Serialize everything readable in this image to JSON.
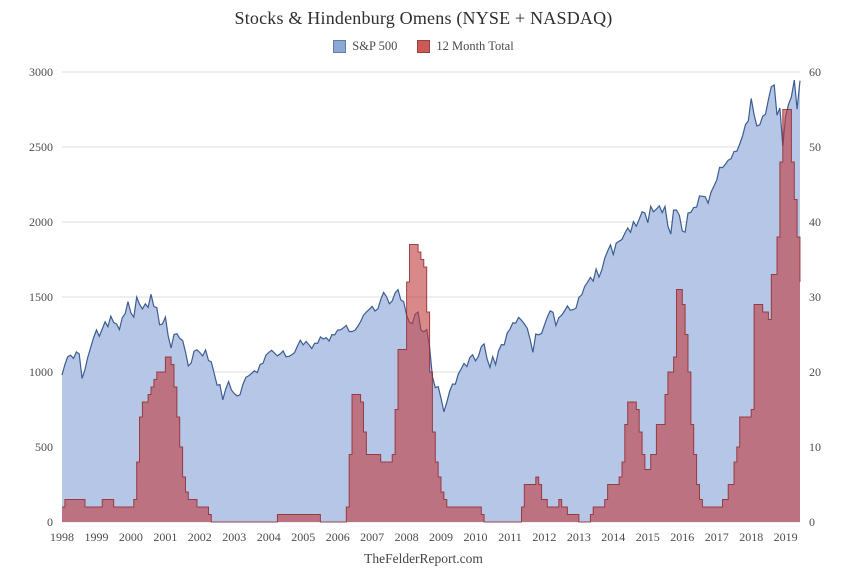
{
  "chart_data": {
    "type": "area",
    "title": "Stocks & Hindenburg Omens (NYSE + NASDAQ)",
    "source": "TheFelderReport.com",
    "legend_position": "top-center",
    "grid": true,
    "grid_color": "#dcdcdc",
    "x_range": [
      1998,
      2019.4167
    ],
    "points_per_year": 12,
    "x_start": 1998,
    "xticks": [
      1998,
      1999,
      2000,
      2001,
      2002,
      2003,
      2004,
      2005,
      2006,
      2007,
      2008,
      2009,
      2010,
      2011,
      2012,
      2013,
      2014,
      2015,
      2016,
      2017,
      2018,
      2019
    ],
    "y_left": {
      "range": [
        0,
        3000
      ],
      "ticks": [
        0,
        500,
        1000,
        1500,
        2000,
        2500,
        3000
      ]
    },
    "y_right": {
      "range": [
        0,
        60
      ],
      "ticks": [
        0,
        10,
        20,
        30,
        40,
        50,
        60
      ]
    },
    "series": [
      {
        "name": "S&P 500",
        "axis": "left",
        "style": "line-area",
        "fill": "#b6c6e6",
        "line": "#3c5d92",
        "swatch": "#8aa7d5",
        "values": [
          980,
          1049,
          1102,
          1112,
          1091,
          1134,
          1121,
          957,
          1017,
          1099,
          1164,
          1229,
          1280,
          1238,
          1286,
          1335,
          1302,
          1373,
          1329,
          1320,
          1283,
          1363,
          1389,
          1469,
          1394,
          1366,
          1499,
          1452,
          1421,
          1455,
          1431,
          1518,
          1437,
          1429,
          1315,
          1320,
          1366,
          1240,
          1160,
          1249,
          1256,
          1224,
          1211,
          1134,
          1041,
          1060,
          1139,
          1148,
          1130,
          1107,
          1147,
          1077,
          1067,
          990,
          912,
          916,
          815,
          886,
          936,
          880,
          856,
          841,
          848,
          917,
          964,
          975,
          990,
          1008,
          996,
          1051,
          1058,
          1112,
          1131,
          1145,
          1126,
          1107,
          1121,
          1141,
          1102,
          1104,
          1115,
          1130,
          1174,
          1212,
          1181,
          1204,
          1181,
          1157,
          1192,
          1191,
          1234,
          1220,
          1229,
          1207,
          1249,
          1248,
          1280,
          1281,
          1295,
          1311,
          1270,
          1270,
          1277,
          1304,
          1336,
          1378,
          1401,
          1418,
          1438,
          1407,
          1421,
          1482,
          1531,
          1503,
          1455,
          1474,
          1527,
          1549,
          1481,
          1468,
          1379,
          1331,
          1323,
          1386,
          1400,
          1280,
          1267,
          1283,
          1166,
          969,
          896,
          903,
          826,
          735,
          798,
          873,
          919,
          919,
          987,
          1021,
          1057,
          1036,
          1096,
          1115,
          1074,
          1104,
          1169,
          1187,
          1089,
          1031,
          1102,
          1049,
          1141,
          1183,
          1181,
          1258,
          1286,
          1327,
          1326,
          1364,
          1345,
          1321,
          1292,
          1219,
          1131,
          1253,
          1247,
          1258,
          1312,
          1366,
          1408,
          1398,
          1310,
          1362,
          1379,
          1407,
          1441,
          1412,
          1416,
          1426,
          1498,
          1515,
          1569,
          1598,
          1631,
          1606,
          1686,
          1633,
          1682,
          1757,
          1806,
          1848,
          1783,
          1859,
          1872,
          1884,
          1924,
          1960,
          1931,
          2003,
          1972,
          2018,
          2068,
          2059,
          1995,
          2105,
          2068,
          2086,
          2107,
          2063,
          2104,
          1972,
          1920,
          2079,
          2080,
          2044,
          1940,
          1932,
          2060,
          2065,
          2097,
          2099,
          2174,
          2171,
          2168,
          2126,
          2199,
          2239,
          2279,
          2364,
          2363,
          2384,
          2412,
          2423,
          2470,
          2472,
          2519,
          2575,
          2648,
          2674,
          2824,
          2714,
          2641,
          2648,
          2705,
          2718,
          2816,
          2902,
          2914,
          2712,
          2760,
          2507,
          2704,
          2784,
          2834,
          2946,
          2752,
          2942
        ]
      },
      {
        "name": "12 Month Total",
        "axis": "right",
        "style": "step-area",
        "fill": "#c23a3e",
        "fill_opacity": 0.6,
        "line": "#8e2b2f",
        "line_opacity": 0.85,
        "swatch": "#cd5a55",
        "values": [
          2,
          3,
          3,
          3,
          3,
          3,
          3,
          3,
          2,
          2,
          2,
          2,
          2,
          2,
          3,
          3,
          3,
          3,
          2,
          2,
          2,
          2,
          2,
          2,
          2,
          3,
          8,
          14,
          16,
          16,
          17,
          18,
          19,
          20,
          20,
          20,
          22,
          22,
          21,
          18,
          14,
          10,
          6,
          4,
          3,
          3,
          3,
          2,
          2,
          2,
          2,
          1,
          0,
          0,
          0,
          0,
          0,
          0,
          0,
          0,
          0,
          0,
          0,
          0,
          0,
          0,
          0,
          0,
          0,
          0,
          0,
          0,
          0,
          0,
          0,
          1,
          1,
          1,
          1,
          1,
          1,
          1,
          1,
          1,
          1,
          1,
          1,
          1,
          1,
          1,
          0,
          0,
          0,
          0,
          0,
          0,
          0,
          0,
          0,
          2,
          9,
          17,
          17,
          17,
          16,
          12,
          9,
          9,
          9,
          9,
          9,
          8,
          8,
          8,
          8,
          9,
          15,
          23,
          23,
          23,
          32,
          37,
          37,
          37,
          36,
          35,
          34,
          28,
          20,
          12,
          8,
          6,
          4,
          3,
          2,
          2,
          2,
          2,
          2,
          2,
          2,
          2,
          2,
          2,
          2,
          2,
          1,
          0,
          0,
          0,
          0,
          0,
          0,
          0,
          0,
          0,
          0,
          0,
          0,
          0,
          2,
          5,
          5,
          5,
          5,
          6,
          5,
          3,
          3,
          2,
          2,
          2,
          2,
          3,
          2,
          2,
          1,
          1,
          1,
          1,
          0,
          0,
          0,
          0,
          1,
          2,
          2,
          2,
          2,
          3,
          5,
          5,
          5,
          5,
          6,
          8,
          13,
          16,
          16,
          16,
          15,
          12,
          9,
          7,
          7,
          9,
          9,
          13,
          13,
          13,
          17,
          20,
          20,
          22,
          31,
          31,
          29,
          25,
          20,
          13,
          9,
          5,
          3,
          2,
          2,
          2,
          2,
          2,
          2,
          2,
          3,
          3,
          5,
          5,
          8,
          10,
          14,
          14,
          14,
          14,
          15,
          29,
          29,
          29,
          28,
          28,
          27,
          33,
          33,
          38,
          48,
          55,
          55,
          55,
          48,
          43,
          38,
          32
        ]
      }
    ]
  }
}
